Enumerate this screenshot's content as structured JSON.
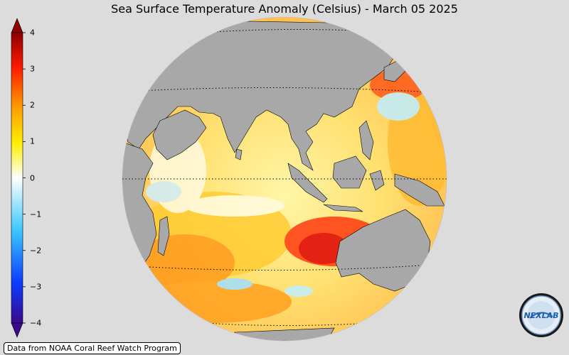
{
  "title": "Sea Surface Temperature Anomaly (Celsius) - March 05 2025",
  "colorbar": {
    "ticks": [
      "4",
      "3",
      "2",
      "1",
      "0",
      "−1",
      "−2",
      "−3",
      "−4"
    ],
    "min": -4,
    "max": 4,
    "colors": [
      "#3a0a8c",
      "#0a3cff",
      "#3cc8ff",
      "#ffffff",
      "#ffee00",
      "#ff9800",
      "#ff1a00",
      "#8c0000"
    ]
  },
  "credit": "Data from NOAA Coral Reef Watch Program",
  "logo_text": "NEXLAB",
  "colors": {
    "background": "#dcdcdc",
    "land": "#a8a8a8",
    "warm": "#ff9800",
    "hot": "#ff1a00",
    "cool": "#bff4ff"
  }
}
